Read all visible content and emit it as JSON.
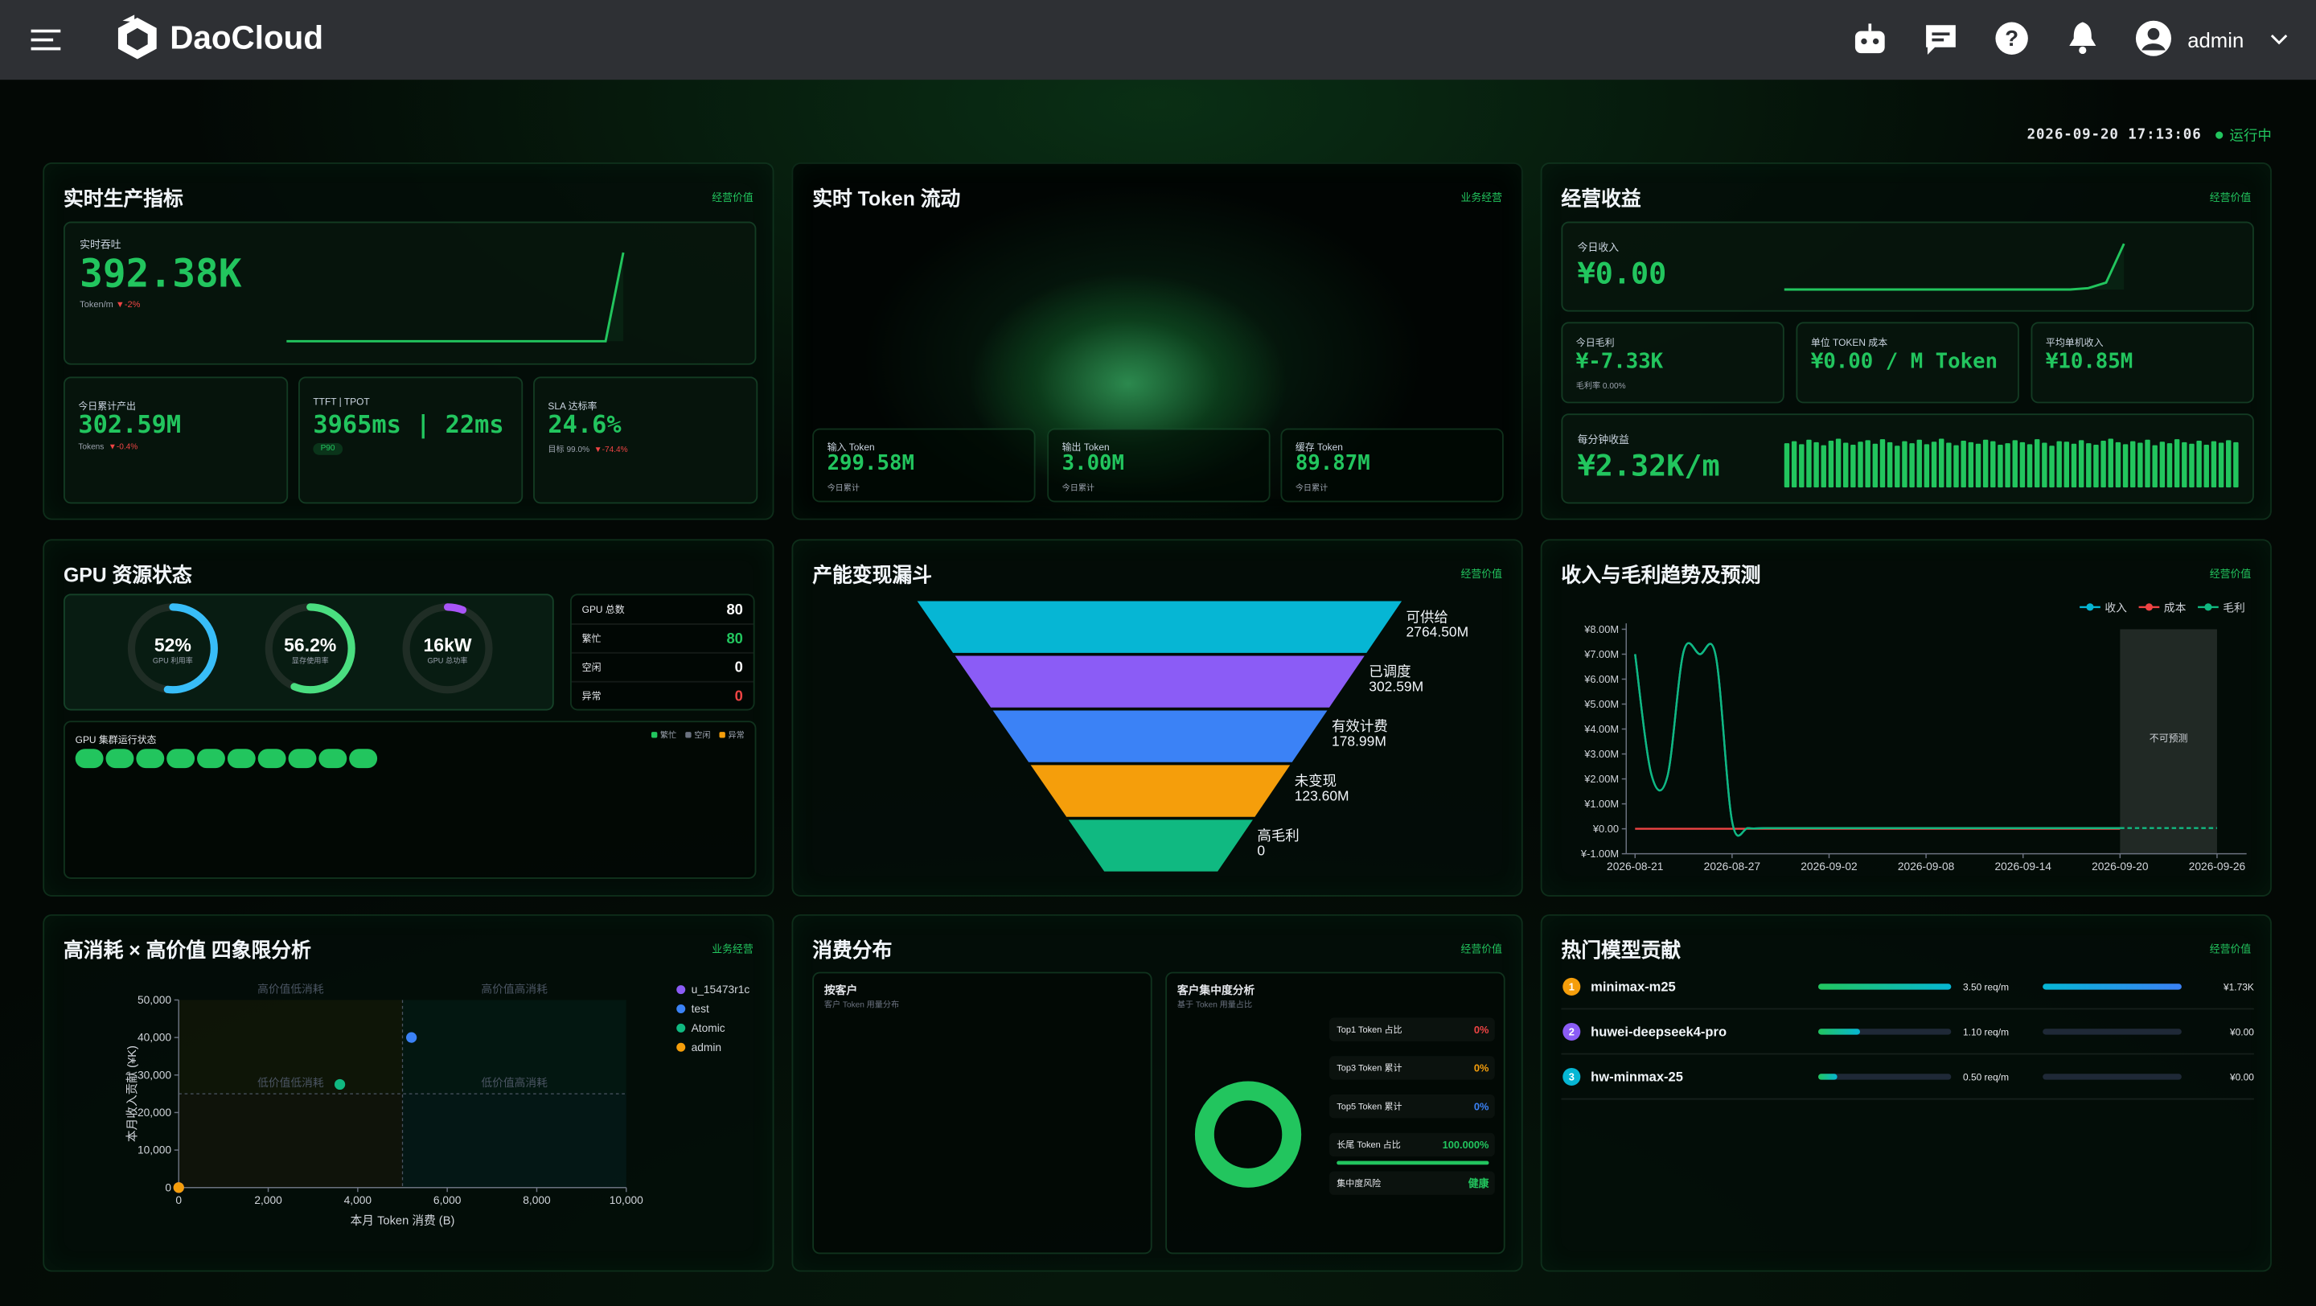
{
  "header": {
    "brand": "DaoCloud",
    "user": "admin"
  },
  "status": {
    "datetime": "2026-09-20 17:13:06",
    "state": "运行中"
  },
  "production": {
    "title": "实时生产指标",
    "tag": "经营价值",
    "throughput": {
      "label": "实时吞吐",
      "value": "392.38K",
      "unit": "Token/m",
      "delta": "▼-2%",
      "trend": [
        0,
        0,
        0,
        0,
        0,
        0,
        0,
        0,
        0,
        0,
        0,
        0,
        0,
        0,
        0,
        0,
        0,
        0,
        0,
        100
      ]
    },
    "cards": [
      {
        "label": "今日累计产出",
        "value": "302.59M",
        "sub": "Tokens",
        "delta": "▼-0.4%"
      },
      {
        "label": "TTFT | TPOT",
        "value": "3965ms | 22ms",
        "badge": "P90"
      },
      {
        "label": "SLA 达标率",
        "value": "24.6%",
        "sub": "目标 99.0%",
        "delta": "▼-74.4%"
      }
    ]
  },
  "token": {
    "title": "实时 Token 流动",
    "tag": "业务经营",
    "cards": [
      {
        "label": "输入 Token",
        "value": "299.58M",
        "sub": "今日累计"
      },
      {
        "label": "输出 Token",
        "value": "3.00M",
        "sub": "今日累计"
      },
      {
        "label": "缓存 Token",
        "value": "89.87M",
        "sub": "今日累计"
      }
    ]
  },
  "revenue": {
    "title": "经营收益",
    "tag": "经营价值",
    "today": {
      "label": "今日收入",
      "value": "¥0.00",
      "trend": [
        0,
        0,
        0,
        0,
        0,
        0,
        0,
        0,
        0,
        0,
        0,
        0,
        0,
        0,
        0,
        0,
        0,
        3,
        15,
        100
      ]
    },
    "cards": [
      {
        "label": "今日毛利",
        "value": "¥-7.33K",
        "sub": "毛利率 0.00%"
      },
      {
        "label": "单位 TOKEN 成本",
        "value": "¥0.00 / M Token"
      },
      {
        "label": "平均单机收入",
        "value": "¥10.85M"
      }
    ],
    "per_minute": {
      "label": "每分钟收益",
      "value": "¥2.32K/m",
      "bars": [
        88,
        92,
        86,
        95,
        90,
        84,
        93,
        97,
        89,
        85,
        91,
        94,
        87,
        96,
        90,
        83,
        92,
        88,
        95,
        86,
        91,
        97,
        89,
        84,
        93,
        90,
        87,
        95,
        92,
        85,
        88,
        94,
        90,
        86,
        96,
        89,
        83,
        92,
        91,
        87,
        94,
        88,
        85,
        93,
        97,
        90,
        86,
        92,
        89,
        95,
        84,
        91,
        88,
        96,
        90,
        87,
        93,
        85,
        92,
        89,
        94,
        90
      ]
    }
  },
  "gpu": {
    "title": "GPU 资源状态",
    "gauges": [
      {
        "value": 52,
        "label": "52%",
        "name": "GPU 利用率",
        "color": "#38bdf8"
      },
      {
        "value": 56.2,
        "label": "56.2%",
        "name": "显存使用率",
        "color": "#4ade80"
      },
      {
        "value": 6,
        "label": "16kW",
        "name": "GPU 总功率",
        "color": "#a855f7"
      }
    ],
    "stats": [
      {
        "label": "GPU 总数",
        "value": 80,
        "color": "#ffffff"
      },
      {
        "label": "繁忙",
        "value": 80,
        "color": "#22c55e"
      },
      {
        "label": "空闲",
        "value": 0,
        "color": "#ffffff"
      },
      {
        "label": "异常",
        "value": 0,
        "color": "#ef4444"
      }
    ],
    "cluster": {
      "title": "GPU 集群运行状态",
      "legend": [
        {
          "name": "繁忙",
          "color": "#22c55e"
        },
        {
          "name": "空闲",
          "color": "#6b7280"
        },
        {
          "name": "异常",
          "color": "#f59e0b"
        }
      ],
      "nodes": [
        0,
        0,
        0,
        0,
        0,
        0,
        0,
        0,
        0,
        0
      ]
    }
  },
  "funnel": {
    "title": "产能变现漏斗",
    "tag": "经营价值",
    "type": "funnel",
    "stages": [
      {
        "name": "可供给",
        "value": "2764.50M",
        "color": "#06b6d4"
      },
      {
        "name": "已调度",
        "value": "302.59M",
        "color": "#8b5cf6"
      },
      {
        "name": "有效计费",
        "value": "178.99M",
        "color": "#3b82f6"
      },
      {
        "name": "未变现",
        "value": "123.60M",
        "color": "#f59e0b"
      },
      {
        "name": "高毛利",
        "value": "0",
        "color": "#10b981"
      }
    ]
  },
  "trend": {
    "title": "收入与毛利趋势及预测",
    "tag": "经营价值",
    "type": "line",
    "x": [
      "2026-08-21",
      "2026-08-22",
      "2026-08-23",
      "2026-08-24",
      "2026-08-25",
      "2026-08-26",
      "2026-08-27",
      "2026-08-28",
      "2026-08-29",
      "2026-08-30",
      "2026-08-31",
      "2026-09-01",
      "2026-09-02",
      "2026-09-03",
      "2026-09-04",
      "2026-09-05",
      "2026-09-06",
      "2026-09-07",
      "2026-09-08",
      "2026-09-09",
      "2026-09-10",
      "2026-09-11",
      "2026-09-12",
      "2026-09-13",
      "2026-09-14",
      "2026-09-15",
      "2026-09-16",
      "2026-09-17",
      "2026-09-18",
      "2026-09-19",
      "2026-09-20",
      "2026-09-21",
      "2026-09-22",
      "2026-09-23",
      "2026-09-24",
      "2026-09-25",
      "2026-09-26"
    ],
    "xticks": [
      "2026-08-21",
      "2026-08-27",
      "2026-09-02",
      "2026-09-08",
      "2026-09-14",
      "2026-09-20",
      "2026-09-26"
    ],
    "ylim": [
      -1,
      8
    ],
    "yticks": [
      {
        "value": 8,
        "label": "¥8.00M"
      },
      {
        "value": 7,
        "label": "¥7.00M"
      },
      {
        "value": 6,
        "label": "¥6.00M"
      },
      {
        "value": 5,
        "label": "¥5.00M"
      },
      {
        "value": 4,
        "label": "¥4.00M"
      },
      {
        "value": 3,
        "label": "¥3.00M"
      },
      {
        "value": 2,
        "label": "¥2.00M"
      },
      {
        "value": 1,
        "label": "¥1.00M"
      },
      {
        "value": 0,
        "label": "¥0.00"
      },
      {
        "value": -1,
        "label": "¥-1.00M"
      }
    ],
    "series": [
      {
        "name": "收入",
        "color": "#06b6d4",
        "values": [
          7.0,
          2.2,
          2.1,
          7.1,
          7.0,
          6.9,
          0.3,
          0.03,
          0.03,
          0.03,
          0.03,
          0.03,
          0.03,
          0.03,
          0.03,
          0.03,
          0.03,
          0.03,
          0.03,
          0.03,
          0.03,
          0.03,
          0.03,
          0.03,
          0.03,
          0.03,
          0.03,
          0.03,
          0.03,
          0.03,
          0.03,
          null,
          null,
          null,
          null,
          null,
          null
        ]
      },
      {
        "name": "成本",
        "color": "#ef4444",
        "values": [
          0,
          0,
          0,
          0,
          0,
          0,
          0,
          0,
          0,
          0,
          0,
          0,
          0,
          0,
          0,
          0,
          0,
          0,
          0,
          0,
          0,
          0,
          0,
          0,
          0,
          0,
          0,
          0,
          0,
          0,
          0,
          null,
          null,
          null,
          null,
          null,
          null
        ]
      },
      {
        "name": "毛利",
        "color": "#10b981",
        "values": [
          7.0,
          2.2,
          2.1,
          7.1,
          7.0,
          6.9,
          0.3,
          0.03,
          0.03,
          0.03,
          0.03,
          0.03,
          0.03,
          0.03,
          0.03,
          0.03,
          0.03,
          0.03,
          0.03,
          0.03,
          0.03,
          0.03,
          0.03,
          0.03,
          0.03,
          0.03,
          0.03,
          0.03,
          0.03,
          0.03,
          0.03,
          0.03,
          0.03,
          0.03,
          0.03,
          0.03,
          0.03
        ]
      }
    ],
    "forecast": {
      "from": "2026-09-20",
      "to": "2026-09-26",
      "label": "不可预测"
    }
  },
  "quadrant": {
    "title": "高消耗 × 高价值 四象限分析",
    "tag": "业务经营",
    "type": "scatter",
    "xlabel": "本月 Token 消费 (B)",
    "ylabel": "本月收入贡献 (¥K)",
    "xlim": [
      0,
      10000
    ],
    "ylim": [
      0,
      50000
    ],
    "xticks": [
      0,
      {
        "value": 2000,
        "label": "2,000"
      },
      {
        "value": 4000,
        "label": "4,000"
      },
      {
        "value": 6000,
        "label": "6,000"
      },
      {
        "value": 8000,
        "label": "8,000"
      },
      {
        "value": 10000,
        "label": "10,000"
      }
    ],
    "yticks": [
      0,
      {
        "value": 10000,
        "label": "10,000"
      },
      {
        "value": 20000,
        "label": "20,000"
      },
      {
        "value": 30000,
        "label": "30,000"
      },
      {
        "value": 40000,
        "label": "40,000"
      },
      {
        "value": 50000,
        "label": "50,000"
      }
    ],
    "quadrants": [
      "高价值低消耗",
      "高价值高消耗",
      "低价值低消耗",
      "低价值高消耗"
    ],
    "series": [
      {
        "name": "u_15473r1c",
        "color": "#8b5cf6",
        "x": [
          0
        ],
        "values": [
          0
        ]
      },
      {
        "name": "test",
        "color": "#3b82f6",
        "x": [
          5200
        ],
        "values": [
          40000
        ]
      },
      {
        "name": "Atomic",
        "color": "#10b981",
        "x": [
          3600
        ],
        "values": [
          27500
        ]
      },
      {
        "name": "admin",
        "color": "#f59e0b",
        "x": [
          0
        ],
        "values": [
          0
        ]
      }
    ]
  },
  "consumption": {
    "title": "消费分布",
    "tag": "经营价值",
    "by_customer": {
      "title": "按客户",
      "subtitle": "客户 Token 用量分布"
    },
    "concentration": {
      "title": "客户集中度分析",
      "subtitle": "基于 Token 用量占比",
      "rows": [
        {
          "label": "Top1 Token 占比",
          "value": "0%",
          "color": "#ef4444"
        },
        {
          "label": "Top3 Token 累计",
          "value": "0%",
          "color": "#f59e0b"
        },
        {
          "label": "Top5 Token 累计",
          "value": "0%",
          "color": "#3b82f6"
        },
        {
          "label": "长尾 Token 占比",
          "value": 100,
          "value_label": "100.000%",
          "color": "#22c55e"
        },
        {
          "label": "集中度风险",
          "value": "健康",
          "color": "#22c55e"
        }
      ]
    }
  },
  "models": {
    "title": "热门模型贡献",
    "tag": "经营价值",
    "rows": [
      {
        "rank": 1,
        "name": "minimax-m25",
        "req": 3.5,
        "req_label": "3.50 req/m",
        "revenue": 1730,
        "revenue_label": "¥1.73K",
        "color": "#f59e0b"
      },
      {
        "rank": 2,
        "name": "huwei-deepseek4-pro",
        "req": 1.1,
        "req_label": "1.10 req/m",
        "revenue": 0,
        "revenue_label": "¥0.00",
        "color": "#8b5cf6"
      },
      {
        "rank": 3,
        "name": "hw-minmax-25",
        "req": 0.5,
        "req_label": "0.50 req/m",
        "revenue": 0,
        "revenue_label": "¥0.00",
        "color": "#06b6d4"
      }
    ]
  }
}
